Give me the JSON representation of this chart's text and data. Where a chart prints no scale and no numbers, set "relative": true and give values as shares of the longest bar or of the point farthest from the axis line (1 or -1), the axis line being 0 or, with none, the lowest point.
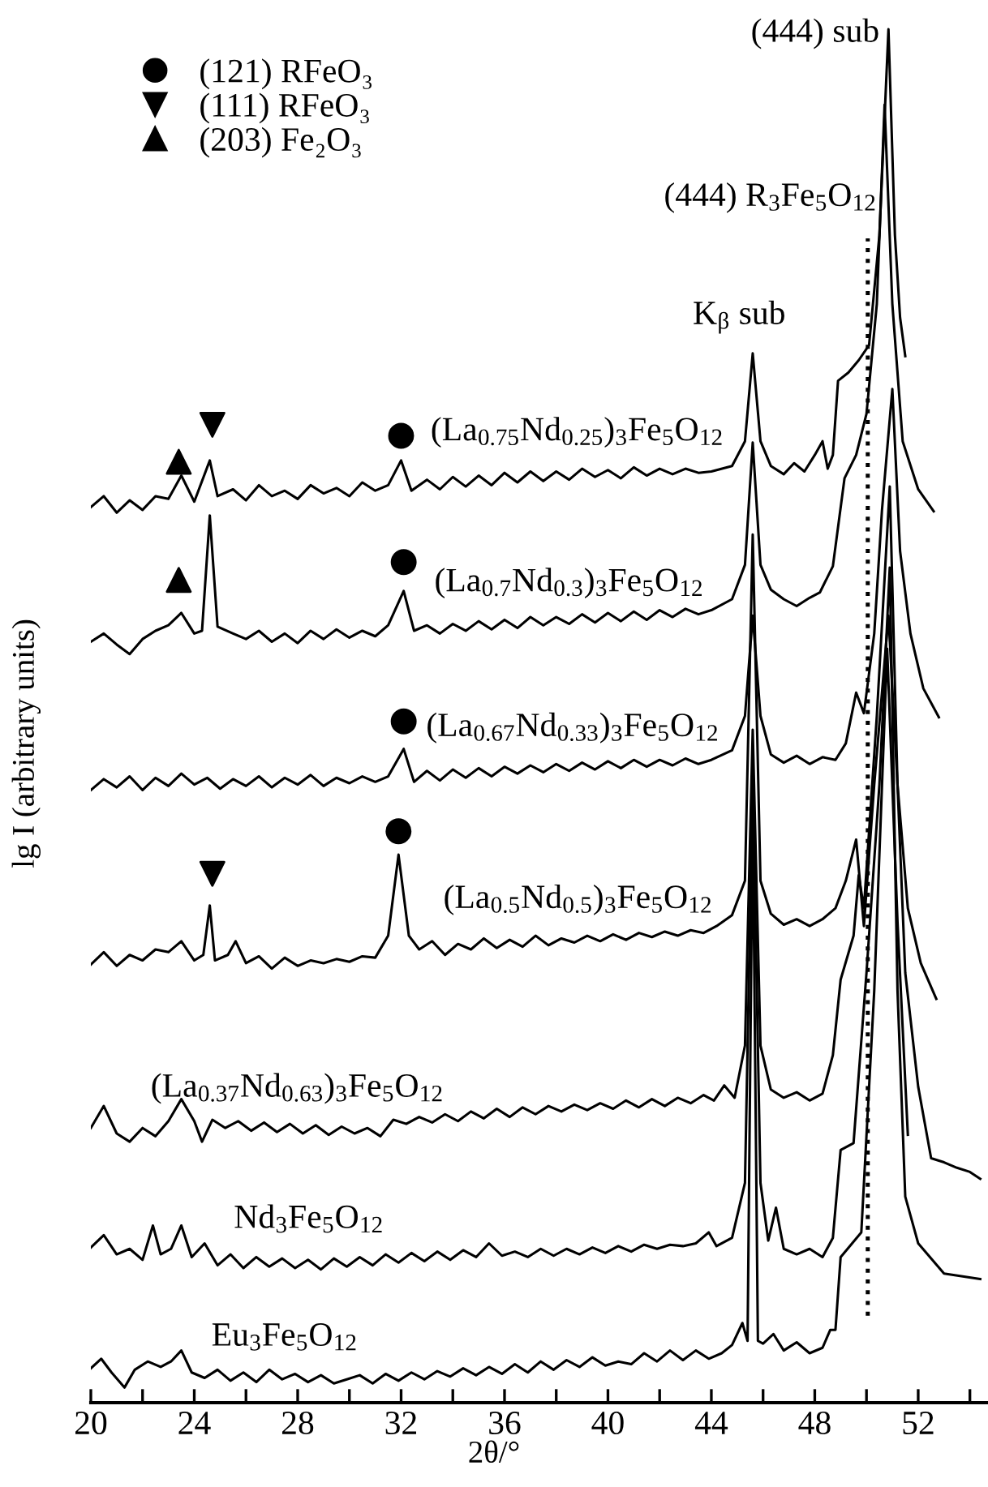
{
  "chart_data": {
    "type": "line",
    "relative": true,
    "xlabel": "2θ/°",
    "ylabel": "lg I (arbitrary units)",
    "xlim": [
      20,
      54.7
    ],
    "xticks": [
      20,
      {
        "value": 22,
        "label": null
      },
      24,
      {
        "value": 26,
        "label": null
      },
      28,
      {
        "value": 30,
        "label": null
      },
      32,
      {
        "value": 34,
        "label": null
      },
      36,
      {
        "value": 38,
        "label": null
      },
      40,
      {
        "value": 42,
        "label": null
      },
      44,
      {
        "value": 46,
        "label": null
      },
      48,
      {
        "value": 50,
        "label": null
      },
      52,
      {
        "value": 54,
        "label": null
      }
    ],
    "tick_labels": "x",
    "legend": "top left",
    "series": [
      {
        "name": "(La$_{0.75}$Nd$_{0.25}$)$_{3}$Fe$_{5}$O$_{12}$",
        "color": "#000000",
        "x": [
          20,
          20.5,
          21,
          21.5,
          22,
          22.5,
          23,
          23.5,
          24,
          24.6,
          24.9,
          25.5,
          26,
          26.5,
          27,
          27.5,
          28,
          28.5,
          29,
          29.5,
          30,
          30.5,
          31,
          31.5,
          32.0,
          32.4,
          33,
          33.5,
          34,
          34.5,
          35,
          35.5,
          36,
          36.5,
          37,
          37.5,
          38,
          38.5,
          39,
          39.5,
          40,
          40.5,
          41,
          41.5,
          42,
          42.5,
          43,
          43.5,
          44,
          44.8,
          45.3,
          45.6,
          45.9,
          46.3,
          46.8,
          47.2,
          47.6,
          48.0,
          48.3,
          48.5,
          48.7,
          48.9,
          49.3,
          49.7,
          50.1,
          50.5,
          50.85,
          51.1,
          51.3,
          51.5
        ],
        "values": [
          0.652,
          0.66,
          0.648,
          0.657,
          0.65,
          0.66,
          0.658,
          0.675,
          0.656,
          0.686,
          0.66,
          0.665,
          0.657,
          0.668,
          0.66,
          0.664,
          0.658,
          0.668,
          0.662,
          0.666,
          0.66,
          0.67,
          0.664,
          0.668,
          0.686,
          0.664,
          0.672,
          0.665,
          0.674,
          0.667,
          0.675,
          0.668,
          0.677,
          0.67,
          0.678,
          0.671,
          0.678,
          0.672,
          0.68,
          0.674,
          0.679,
          0.673,
          0.681,
          0.675,
          0.68,
          0.676,
          0.68,
          0.677,
          0.678,
          0.682,
          0.7,
          0.764,
          0.7,
          0.682,
          0.676,
          0.684,
          0.678,
          0.69,
          0.7,
          0.68,
          0.69,
          0.744,
          0.75,
          0.759,
          0.77,
          0.85,
          1.0,
          0.85,
          0.79,
          0.762
        ]
      },
      {
        "name": "(La$_{0.7}$Nd$_{0.3}$)$_{3}$Fe$_{5}$O$_{12}$",
        "color": "#000000",
        "x": [
          20,
          20.5,
          21,
          21.5,
          22,
          22.5,
          23,
          23.5,
          24,
          24.3,
          24.6,
          24.9,
          25.5,
          26,
          26.5,
          27,
          27.5,
          28,
          28.5,
          29,
          29.5,
          30,
          30.5,
          31,
          31.5,
          32.1,
          32.5,
          33,
          33.5,
          34,
          34.5,
          35,
          35.5,
          36,
          36.5,
          37,
          37.5,
          38,
          38.5,
          39,
          39.5,
          40,
          40.5,
          41,
          41.5,
          42,
          42.5,
          43,
          43.5,
          44,
          44.8,
          45.3,
          45.6,
          45.9,
          46.3,
          46.8,
          47.3,
          47.8,
          48.2,
          48.7,
          49.15,
          49.6,
          50.0,
          50.4,
          50.7,
          51.0,
          51.4,
          52.0,
          52.6
        ],
        "values": [
          0.554,
          0.56,
          0.552,
          0.545,
          0.556,
          0.562,
          0.566,
          0.575,
          0.56,
          0.562,
          0.646,
          0.565,
          0.56,
          0.556,
          0.562,
          0.554,
          0.56,
          0.553,
          0.562,
          0.556,
          0.563,
          0.557,
          0.562,
          0.558,
          0.566,
          0.591,
          0.562,
          0.566,
          0.56,
          0.567,
          0.562,
          0.569,
          0.563,
          0.57,
          0.564,
          0.572,
          0.566,
          0.572,
          0.567,
          0.574,
          0.568,
          0.575,
          0.569,
          0.576,
          0.57,
          0.577,
          0.572,
          0.578,
          0.574,
          0.577,
          0.585,
          0.61,
          0.699,
          0.61,
          0.592,
          0.585,
          0.58,
          0.586,
          0.59,
          0.609,
          0.673,
          0.69,
          0.72,
          0.8,
          0.945,
          0.8,
          0.7,
          0.665,
          0.649
        ]
      },
      {
        "name": "(La$_{0.67}$Nd$_{0.33}$)$_{3}$Fe$_{5}$O$_{12}$",
        "color": "#000000",
        "x": [
          20,
          20.5,
          21,
          21.5,
          22,
          22.5,
          23,
          23.5,
          24,
          24.5,
          25,
          25.5,
          26,
          26.5,
          27,
          27.5,
          28,
          28.5,
          29,
          29.5,
          30,
          30.5,
          31,
          31.5,
          32.1,
          32.5,
          33,
          33.5,
          34,
          34.5,
          35,
          35.5,
          36,
          36.5,
          37,
          37.5,
          38,
          38.5,
          39,
          39.5,
          40,
          40.5,
          41,
          41.5,
          42,
          42.5,
          43,
          43.5,
          44,
          44.8,
          45.3,
          45.6,
          45.9,
          46.3,
          46.8,
          47.3,
          47.8,
          48.3,
          48.8,
          49.2,
          49.6,
          49.9,
          50.3,
          50.6,
          51.0,
          51.3,
          51.7,
          52.2,
          52.8
        ],
        "values": [
          0.446,
          0.454,
          0.448,
          0.456,
          0.446,
          0.455,
          0.449,
          0.458,
          0.45,
          0.455,
          0.447,
          0.454,
          0.449,
          0.456,
          0.448,
          0.455,
          0.45,
          0.457,
          0.449,
          0.455,
          0.451,
          0.456,
          0.452,
          0.456,
          0.476,
          0.452,
          0.46,
          0.453,
          0.461,
          0.455,
          0.462,
          0.456,
          0.463,
          0.458,
          0.464,
          0.459,
          0.465,
          0.46,
          0.466,
          0.461,
          0.467,
          0.462,
          0.468,
          0.463,
          0.468,
          0.464,
          0.469,
          0.465,
          0.468,
          0.475,
          0.5,
          0.573,
          0.5,
          0.472,
          0.466,
          0.471,
          0.465,
          0.47,
          0.468,
          0.48,
          0.517,
          0.502,
          0.56,
          0.65,
          0.738,
          0.62,
          0.56,
          0.52,
          0.499
        ]
      },
      {
        "name": "(La$_{0.5}$Nd$_{0.5}$)$_{3}$Fe$_{5}$O$_{12}$",
        "color": "#000000",
        "x": [
          20,
          20.5,
          21,
          21.5,
          22,
          22.5,
          23,
          23.5,
          24,
          24.35,
          24.6,
          24.8,
          25.3,
          25.6,
          26,
          26.5,
          27,
          27.5,
          28,
          28.5,
          29,
          29.5,
          30,
          30.5,
          31,
          31.5,
          31.9,
          32.3,
          32.7,
          33.2,
          33.7,
          34.2,
          34.7,
          35.2,
          35.7,
          36.2,
          36.7,
          37.2,
          37.7,
          38.2,
          38.7,
          39.2,
          39.7,
          40.2,
          40.7,
          41.2,
          41.7,
          42.2,
          42.7,
          43.2,
          43.7,
          44.2,
          44.8,
          45.3,
          45.6,
          45.9,
          46.3,
          46.8,
          47.3,
          47.8,
          48.3,
          48.8,
          49.2,
          49.6,
          49.9,
          50.3,
          50.85,
          51.2,
          51.6,
          52.1,
          52.7
        ],
        "values": [
          0.319,
          0.328,
          0.318,
          0.326,
          0.322,
          0.33,
          0.328,
          0.336,
          0.322,
          0.326,
          0.362,
          0.322,
          0.326,
          0.336,
          0.32,
          0.325,
          0.316,
          0.324,
          0.318,
          0.322,
          0.32,
          0.323,
          0.321,
          0.325,
          0.324,
          0.34,
          0.399,
          0.34,
          0.33,
          0.336,
          0.326,
          0.334,
          0.33,
          0.338,
          0.331,
          0.337,
          0.332,
          0.34,
          0.333,
          0.338,
          0.335,
          0.34,
          0.336,
          0.341,
          0.337,
          0.342,
          0.339,
          0.343,
          0.34,
          0.344,
          0.342,
          0.347,
          0.355,
          0.38,
          0.632,
          0.38,
          0.356,
          0.348,
          0.352,
          0.347,
          0.352,
          0.36,
          0.38,
          0.41,
          0.347,
          0.45,
          0.573,
          0.45,
          0.36,
          0.32,
          0.294
        ]
      },
      {
        "name": "(La$_{0.37}$Nd$_{0.63}$)$_{3}$Fe$_{5}$O$_{12}$",
        "color": "#000000",
        "x": [
          20,
          20.5,
          21,
          21.5,
          22,
          22.5,
          23,
          23.5,
          24.0,
          24.3,
          24.7,
          25.2,
          25.7,
          26.2,
          26.7,
          27.2,
          27.7,
          28.2,
          28.7,
          29.2,
          29.7,
          30.2,
          30.7,
          31.2,
          31.7,
          32.2,
          32.7,
          33.2,
          33.7,
          34.2,
          34.7,
          35.2,
          35.7,
          36.2,
          36.7,
          37.2,
          37.7,
          38.2,
          38.7,
          39.2,
          39.7,
          40.2,
          40.7,
          41.2,
          41.7,
          42.2,
          42.7,
          43.2,
          43.7,
          44.1,
          44.5,
          44.9,
          45.3,
          45.6,
          45.9,
          46.3,
          46.8,
          47.3,
          47.8,
          48.3,
          48.7,
          49.0,
          49.5,
          49.7,
          49.9,
          50.4,
          50.9,
          51.2,
          51.5,
          52.0,
          52.5,
          53.0,
          53.5,
          54.0,
          54.4
        ],
        "values": [
          0.2,
          0.216,
          0.196,
          0.19,
          0.2,
          0.194,
          0.205,
          0.221,
          0.205,
          0.19,
          0.206,
          0.2,
          0.205,
          0.198,
          0.204,
          0.197,
          0.203,
          0.196,
          0.202,
          0.195,
          0.201,
          0.196,
          0.2,
          0.194,
          0.206,
          0.203,
          0.208,
          0.204,
          0.21,
          0.205,
          0.212,
          0.207,
          0.214,
          0.208,
          0.215,
          0.21,
          0.216,
          0.212,
          0.217,
          0.213,
          0.218,
          0.214,
          0.22,
          0.215,
          0.221,
          0.216,
          0.222,
          0.218,
          0.224,
          0.22,
          0.231,
          0.222,
          0.26,
          0.49,
          0.26,
          0.228,
          0.222,
          0.226,
          0.22,
          0.225,
          0.253,
          0.308,
          0.34,
          0.384,
          0.36,
          0.5,
          0.667,
          0.45,
          0.313,
          0.23,
          0.178,
          0.175,
          0.171,
          0.168,
          0.163
        ]
      },
      {
        "name": "Nd$_{3}$Fe$_{5}$O$_{12}$",
        "color": "#000000",
        "x": [
          20,
          20.5,
          21,
          21.5,
          22,
          22.4,
          22.7,
          23.1,
          23.5,
          23.9,
          24.4,
          24.9,
          25.4,
          25.9,
          26.4,
          26.9,
          27.4,
          27.9,
          28.4,
          28.9,
          29.4,
          29.9,
          30.4,
          30.9,
          31.4,
          31.9,
          32.4,
          32.9,
          33.4,
          33.9,
          34.4,
          34.9,
          35.4,
          35.9,
          36.4,
          36.9,
          37.4,
          37.9,
          38.4,
          38.9,
          39.4,
          39.9,
          40.4,
          40.9,
          41.4,
          41.9,
          42.4,
          42.9,
          43.4,
          43.9,
          44.2,
          44.8,
          45.3,
          45.6,
          45.9,
          46.2,
          46.5,
          46.8,
          47.3,
          47.8,
          48.3,
          48.7,
          49.0,
          49.5,
          50.0,
          50.5,
          50.9,
          51.2,
          51.5,
          52.0,
          53.0,
          54.4
        ],
        "values": [
          0.113,
          0.122,
          0.108,
          0.112,
          0.104,
          0.129,
          0.108,
          0.112,
          0.129,
          0.106,
          0.116,
          0.1,
          0.108,
          0.098,
          0.106,
          0.099,
          0.105,
          0.098,
          0.104,
          0.097,
          0.105,
          0.099,
          0.106,
          0.1,
          0.108,
          0.102,
          0.109,
          0.103,
          0.11,
          0.104,
          0.111,
          0.106,
          0.116,
          0.107,
          0.11,
          0.106,
          0.112,
          0.107,
          0.112,
          0.108,
          0.113,
          0.109,
          0.114,
          0.11,
          0.115,
          0.112,
          0.115,
          0.114,
          0.116,
          0.124,
          0.114,
          0.12,
          0.16,
          0.455,
          0.16,
          0.118,
          0.142,
          0.112,
          0.108,
          0.112,
          0.106,
          0.12,
          0.184,
          0.189,
          0.313,
          0.45,
          0.608,
          0.3,
          0.15,
          0.116,
          0.094,
          0.09
        ]
      },
      {
        "name": "Eu$_{3}$Fe$_{5}$O$_{12}$",
        "color": "#000000",
        "x": [
          20,
          20.4,
          20.8,
          21.3,
          21.7,
          22.2,
          22.7,
          23.1,
          23.5,
          23.9,
          24.4,
          24.9,
          25.4,
          25.9,
          26.4,
          26.9,
          27.4,
          27.9,
          28.4,
          28.9,
          29.4,
          29.9,
          30.4,
          30.9,
          31.4,
          31.9,
          32.4,
          32.9,
          33.4,
          33.9,
          34.4,
          34.9,
          35.4,
          35.9,
          36.4,
          36.9,
          37.4,
          37.9,
          38.4,
          38.9,
          39.4,
          39.9,
          40.4,
          40.9,
          41.4,
          41.9,
          42.4,
          42.9,
          43.4,
          43.9,
          44.4,
          44.8,
          45.2,
          45.4,
          45.6,
          45.8,
          46.0,
          46.4,
          46.8,
          47.3,
          47.8,
          48.3,
          48.6,
          48.8,
          49.0,
          49.4,
          49.8,
          50.3,
          50.8,
          51.2,
          51.6
        ],
        "values": [
          0.025,
          0.032,
          0.022,
          0.011,
          0.024,
          0.03,
          0.026,
          0.03,
          0.038,
          0.022,
          0.018,
          0.024,
          0.016,
          0.022,
          0.015,
          0.024,
          0.017,
          0.021,
          0.015,
          0.02,
          0.014,
          0.017,
          0.02,
          0.014,
          0.021,
          0.016,
          0.022,
          0.017,
          0.023,
          0.019,
          0.025,
          0.02,
          0.026,
          0.021,
          0.028,
          0.022,
          0.03,
          0.024,
          0.031,
          0.026,
          0.033,
          0.027,
          0.03,
          0.028,
          0.036,
          0.03,
          0.038,
          0.031,
          0.038,
          0.032,
          0.036,
          0.042,
          0.058,
          0.045,
          0.431,
          0.045,
          0.043,
          0.05,
          0.038,
          0.044,
          0.036,
          0.04,
          0.053,
          0.053,
          0.106,
          0.115,
          0.124,
          0.3,
          0.549,
          0.35,
          0.195
        ]
      },
      {
        "type": "scatter",
        "name": "(121) RFeO₃",
        "color": "#000000",
        "marker": "circle",
        "x": [
          32.0,
          32.1,
          32.1,
          31.9
        ],
        "values": [
          0.704,
          0.612,
          0.496,
          0.416
        ]
      },
      {
        "type": "scatter",
        "name": "(111) RFeO₃",
        "color": "#000000",
        "marker": "triangle_down",
        "x": [
          24.7,
          24.7
        ],
        "values": [
          0.712,
          0.385
        ]
      },
      {
        "type": "scatter",
        "name": "(203) Fe₂O₃",
        "color": "#000000",
        "marker": "triangle",
        "x": [
          23.4,
          23.4
        ],
        "values": [
          0.685,
          0.599
        ]
      }
    ],
    "ref_lines": [
      {
        "axis": "x",
        "value": 50.05,
        "label": "(444) R$_{3}$Fe$_{5}$O$_{12}$",
        "line_style": "dotted",
        "color": "#000000"
      }
    ],
    "annotations": [
      {
        "text": "(444) sub",
        "x": 50.85,
        "y": 1.0
      },
      {
        "text": "K$_{β}$ sub",
        "x": 45.6,
        "y": 0.764
      }
    ]
  }
}
